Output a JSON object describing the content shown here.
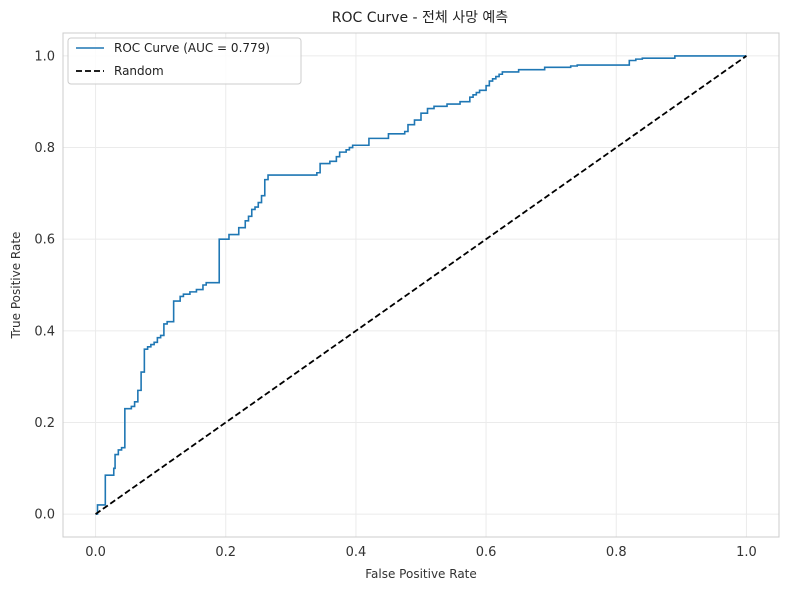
{
  "chart_data": {
    "type": "line",
    "title": "ROC Curve - 전체 사망 예측",
    "xlabel": "False Positive Rate",
    "ylabel": "True Positive Rate",
    "xlim": [
      -0.05,
      1.05
    ],
    "ylim": [
      -0.05,
      1.05
    ],
    "xticks": [
      0.0,
      0.2,
      0.4,
      0.6,
      0.8,
      1.0
    ],
    "yticks": [
      0.0,
      0.2,
      0.4,
      0.6,
      0.8,
      1.0
    ],
    "xtick_labels": [
      "0.0",
      "0.2",
      "0.4",
      "0.6",
      "0.8",
      "1.0"
    ],
    "ytick_labels": [
      "0.0",
      "0.2",
      "0.4",
      "0.6",
      "0.8",
      "1.0"
    ],
    "grid": true,
    "legend_position": "upper-left",
    "series": [
      {
        "name": "ROC Curve (AUC = 0.779)",
        "color": "#1f77b4",
        "style": "solid",
        "step": true,
        "x": [
          0.0,
          0.003,
          0.003,
          0.015,
          0.015,
          0.028,
          0.028,
          0.03,
          0.03,
          0.035,
          0.035,
          0.04,
          0.04,
          0.045,
          0.045,
          0.055,
          0.055,
          0.06,
          0.06,
          0.065,
          0.065,
          0.07,
          0.07,
          0.075,
          0.075,
          0.08,
          0.08,
          0.085,
          0.085,
          0.09,
          0.09,
          0.095,
          0.095,
          0.1,
          0.1,
          0.105,
          0.105,
          0.11,
          0.11,
          0.12,
          0.12,
          0.13,
          0.13,
          0.135,
          0.135,
          0.145,
          0.145,
          0.155,
          0.155,
          0.165,
          0.165,
          0.17,
          0.17,
          0.19,
          0.19,
          0.205,
          0.205,
          0.22,
          0.22,
          0.23,
          0.23,
          0.235,
          0.235,
          0.24,
          0.24,
          0.245,
          0.245,
          0.25,
          0.25,
          0.255,
          0.255,
          0.26,
          0.26,
          0.265,
          0.265,
          0.34,
          0.34,
          0.345,
          0.345,
          0.36,
          0.36,
          0.37,
          0.37,
          0.375,
          0.375,
          0.385,
          0.385,
          0.39,
          0.39,
          0.395,
          0.395,
          0.42,
          0.42,
          0.45,
          0.45,
          0.475,
          0.475,
          0.48,
          0.48,
          0.49,
          0.49,
          0.5,
          0.5,
          0.51,
          0.51,
          0.52,
          0.52,
          0.54,
          0.54,
          0.56,
          0.56,
          0.575,
          0.575,
          0.58,
          0.58,
          0.585,
          0.585,
          0.59,
          0.59,
          0.6,
          0.6,
          0.605,
          0.605,
          0.61,
          0.61,
          0.615,
          0.615,
          0.62,
          0.62,
          0.625,
          0.625,
          0.65,
          0.65,
          0.69,
          0.69,
          0.73,
          0.73,
          0.74,
          0.74,
          0.82,
          0.82,
          0.83,
          0.83,
          0.84,
          0.84,
          0.89,
          0.89,
          1.0
        ],
        "y": [
          0.0,
          0.0,
          0.02,
          0.02,
          0.085,
          0.085,
          0.1,
          0.1,
          0.13,
          0.13,
          0.14,
          0.14,
          0.145,
          0.145,
          0.23,
          0.23,
          0.235,
          0.235,
          0.245,
          0.245,
          0.27,
          0.27,
          0.31,
          0.31,
          0.36,
          0.36,
          0.365,
          0.365,
          0.37,
          0.37,
          0.375,
          0.375,
          0.385,
          0.385,
          0.39,
          0.39,
          0.415,
          0.415,
          0.42,
          0.42,
          0.465,
          0.465,
          0.475,
          0.475,
          0.48,
          0.48,
          0.485,
          0.485,
          0.49,
          0.49,
          0.5,
          0.5,
          0.505,
          0.505,
          0.6,
          0.6,
          0.61,
          0.61,
          0.625,
          0.625,
          0.64,
          0.64,
          0.65,
          0.65,
          0.665,
          0.665,
          0.67,
          0.67,
          0.68,
          0.68,
          0.695,
          0.695,
          0.73,
          0.73,
          0.74,
          0.74,
          0.745,
          0.745,
          0.765,
          0.765,
          0.77,
          0.77,
          0.78,
          0.78,
          0.79,
          0.79,
          0.795,
          0.795,
          0.8,
          0.8,
          0.805,
          0.805,
          0.82,
          0.82,
          0.83,
          0.83,
          0.835,
          0.835,
          0.85,
          0.85,
          0.86,
          0.86,
          0.875,
          0.875,
          0.885,
          0.885,
          0.89,
          0.89,
          0.895,
          0.895,
          0.9,
          0.9,
          0.91,
          0.91,
          0.915,
          0.915,
          0.92,
          0.92,
          0.925,
          0.925,
          0.935,
          0.935,
          0.945,
          0.945,
          0.95,
          0.95,
          0.955,
          0.955,
          0.96,
          0.96,
          0.965,
          0.965,
          0.97,
          0.97,
          0.975,
          0.975,
          0.978,
          0.978,
          0.98,
          0.98,
          0.99,
          0.99,
          0.993,
          0.993,
          0.995,
          0.995,
          1.0,
          1.0
        ]
      },
      {
        "name": "Random",
        "color": "#000000",
        "style": "dashed",
        "x": [
          0.0,
          1.0
        ],
        "y": [
          0.0,
          1.0
        ]
      }
    ]
  }
}
